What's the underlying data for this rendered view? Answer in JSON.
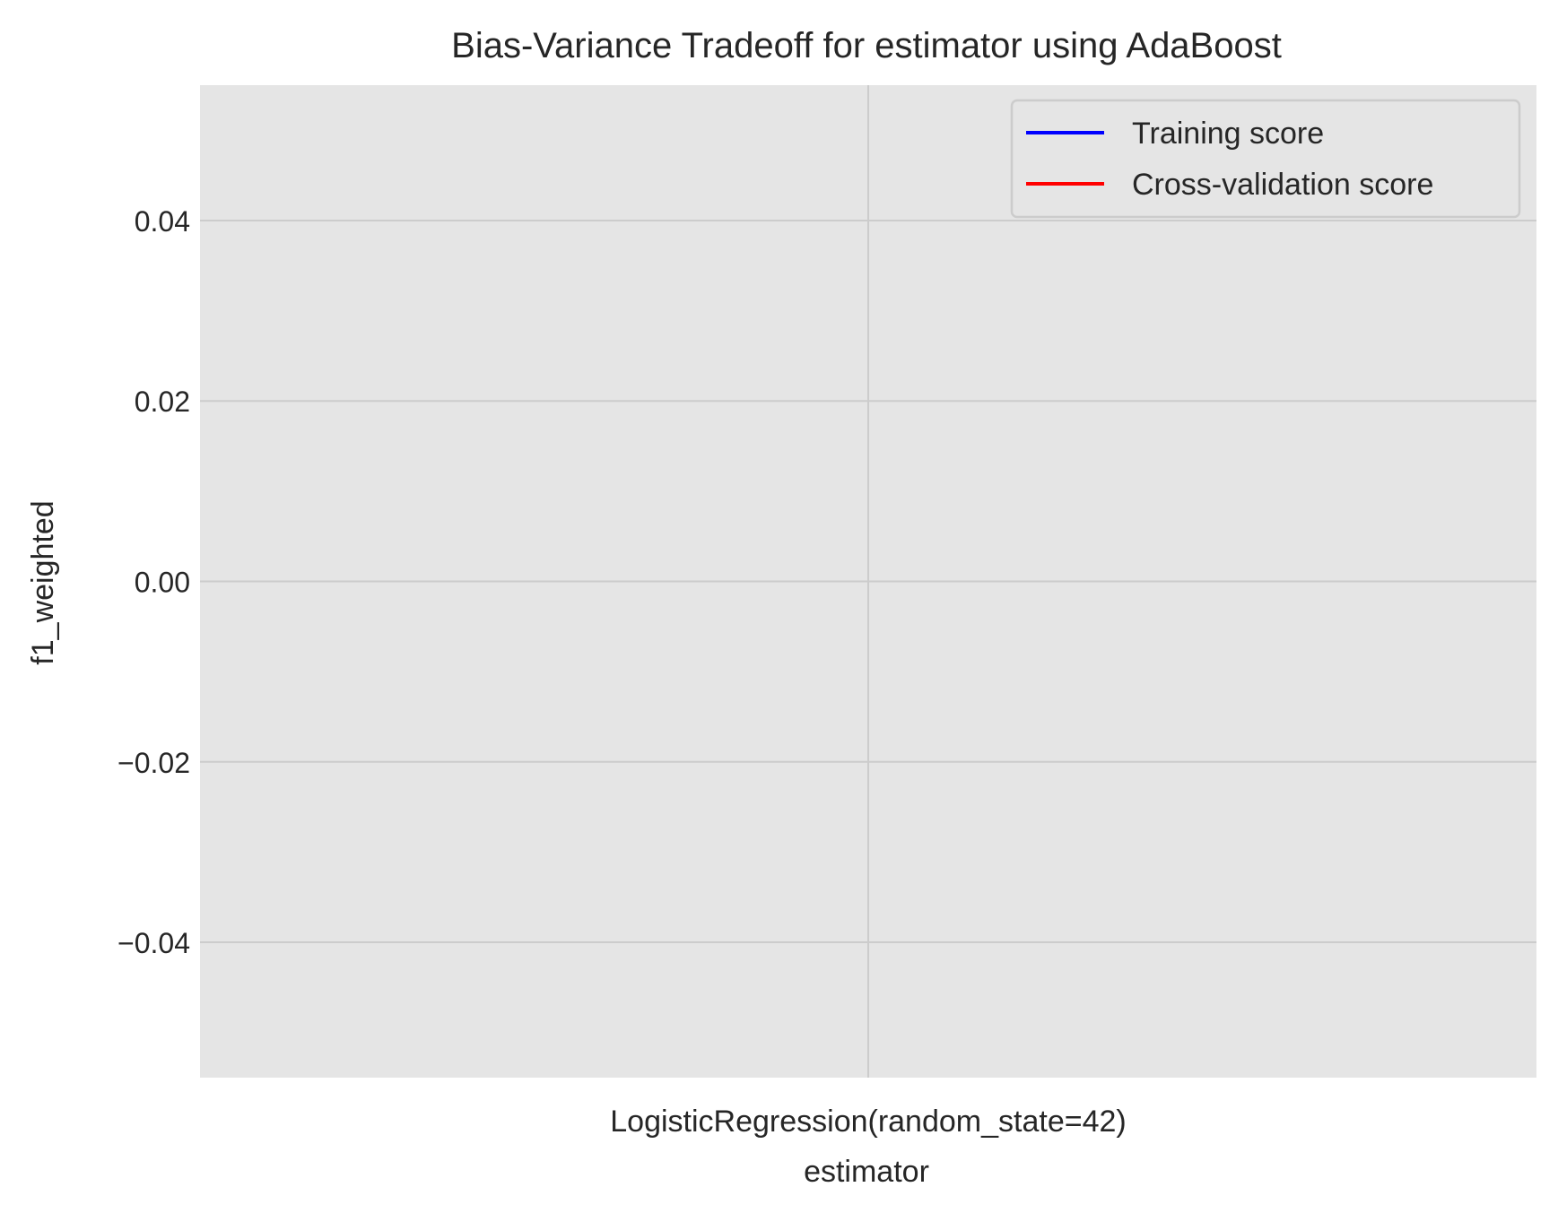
{
  "chart_data": {
    "type": "line",
    "title": "Bias-Variance Tradeoff for estimator using AdaBoost",
    "xlabel": "estimator",
    "ylabel": "f1_weighted",
    "categories": [
      "LogisticRegression(random_state=42)"
    ],
    "series": [
      {
        "name": "Training score",
        "values": [
          null
        ],
        "color": "#0000ff"
      },
      {
        "name": "Cross-validation score",
        "values": [
          null
        ],
        "color": "#ff0000"
      }
    ],
    "ylim": [
      -0.055,
      0.055
    ],
    "yticks": [
      {
        "value": 0.04,
        "label": "0.04"
      },
      {
        "value": 0.02,
        "label": "0.02"
      },
      {
        "value": 0.0,
        "label": "0.00"
      },
      {
        "value": -0.02,
        "label": "−0.02"
      },
      {
        "value": -0.04,
        "label": "−0.04"
      }
    ],
    "grid": true,
    "legend_position": "top-right",
    "plot_background": "#e5e5e5",
    "grid_color": "#cccccc"
  }
}
